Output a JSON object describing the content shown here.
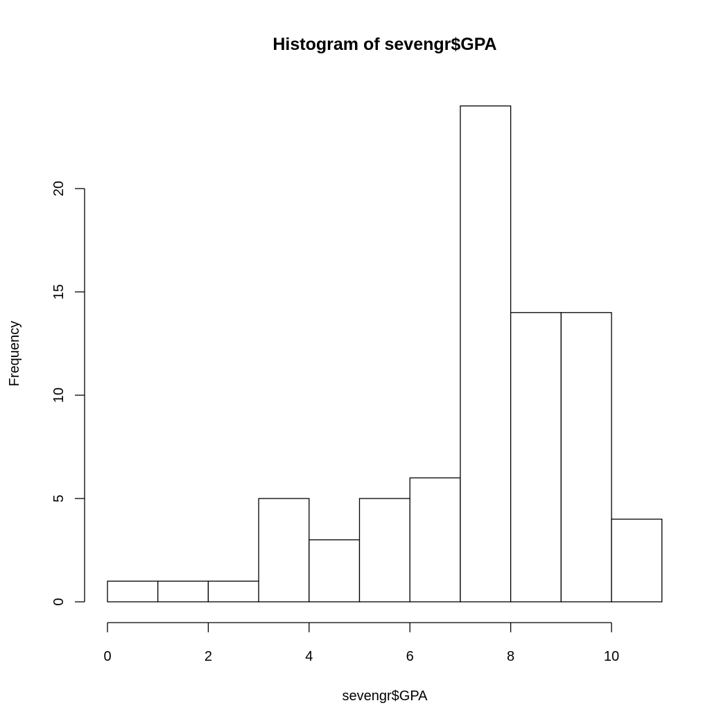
{
  "chart_data": {
    "type": "bar",
    "title": "Histogram of sevengr$GPA",
    "xlabel": "sevengr$GPA",
    "ylabel": "Frequency",
    "bins": [
      {
        "from": 0,
        "to": 1,
        "count": 1
      },
      {
        "from": 1,
        "to": 2,
        "count": 1
      },
      {
        "from": 2,
        "to": 3,
        "count": 1
      },
      {
        "from": 3,
        "to": 4,
        "count": 5
      },
      {
        "from": 4,
        "to": 5,
        "count": 3
      },
      {
        "from": 5,
        "to": 6,
        "count": 5
      },
      {
        "from": 6,
        "to": 7,
        "count": 6
      },
      {
        "from": 7,
        "to": 8,
        "count": 24
      },
      {
        "from": 8,
        "to": 9,
        "count": 14
      },
      {
        "from": 9,
        "to": 10,
        "count": 14
      },
      {
        "from": 10,
        "to": 11,
        "count": 4
      }
    ],
    "x_ticks": [
      0,
      2,
      4,
      6,
      8,
      10
    ],
    "y_ticks": [
      0,
      5,
      10,
      15,
      20
    ],
    "xlim": [
      0,
      11
    ],
    "ylim": [
      0,
      24
    ],
    "grid": false,
    "legend": "none",
    "bar_fill": "#ffffff",
    "bar_stroke": "#000000"
  }
}
